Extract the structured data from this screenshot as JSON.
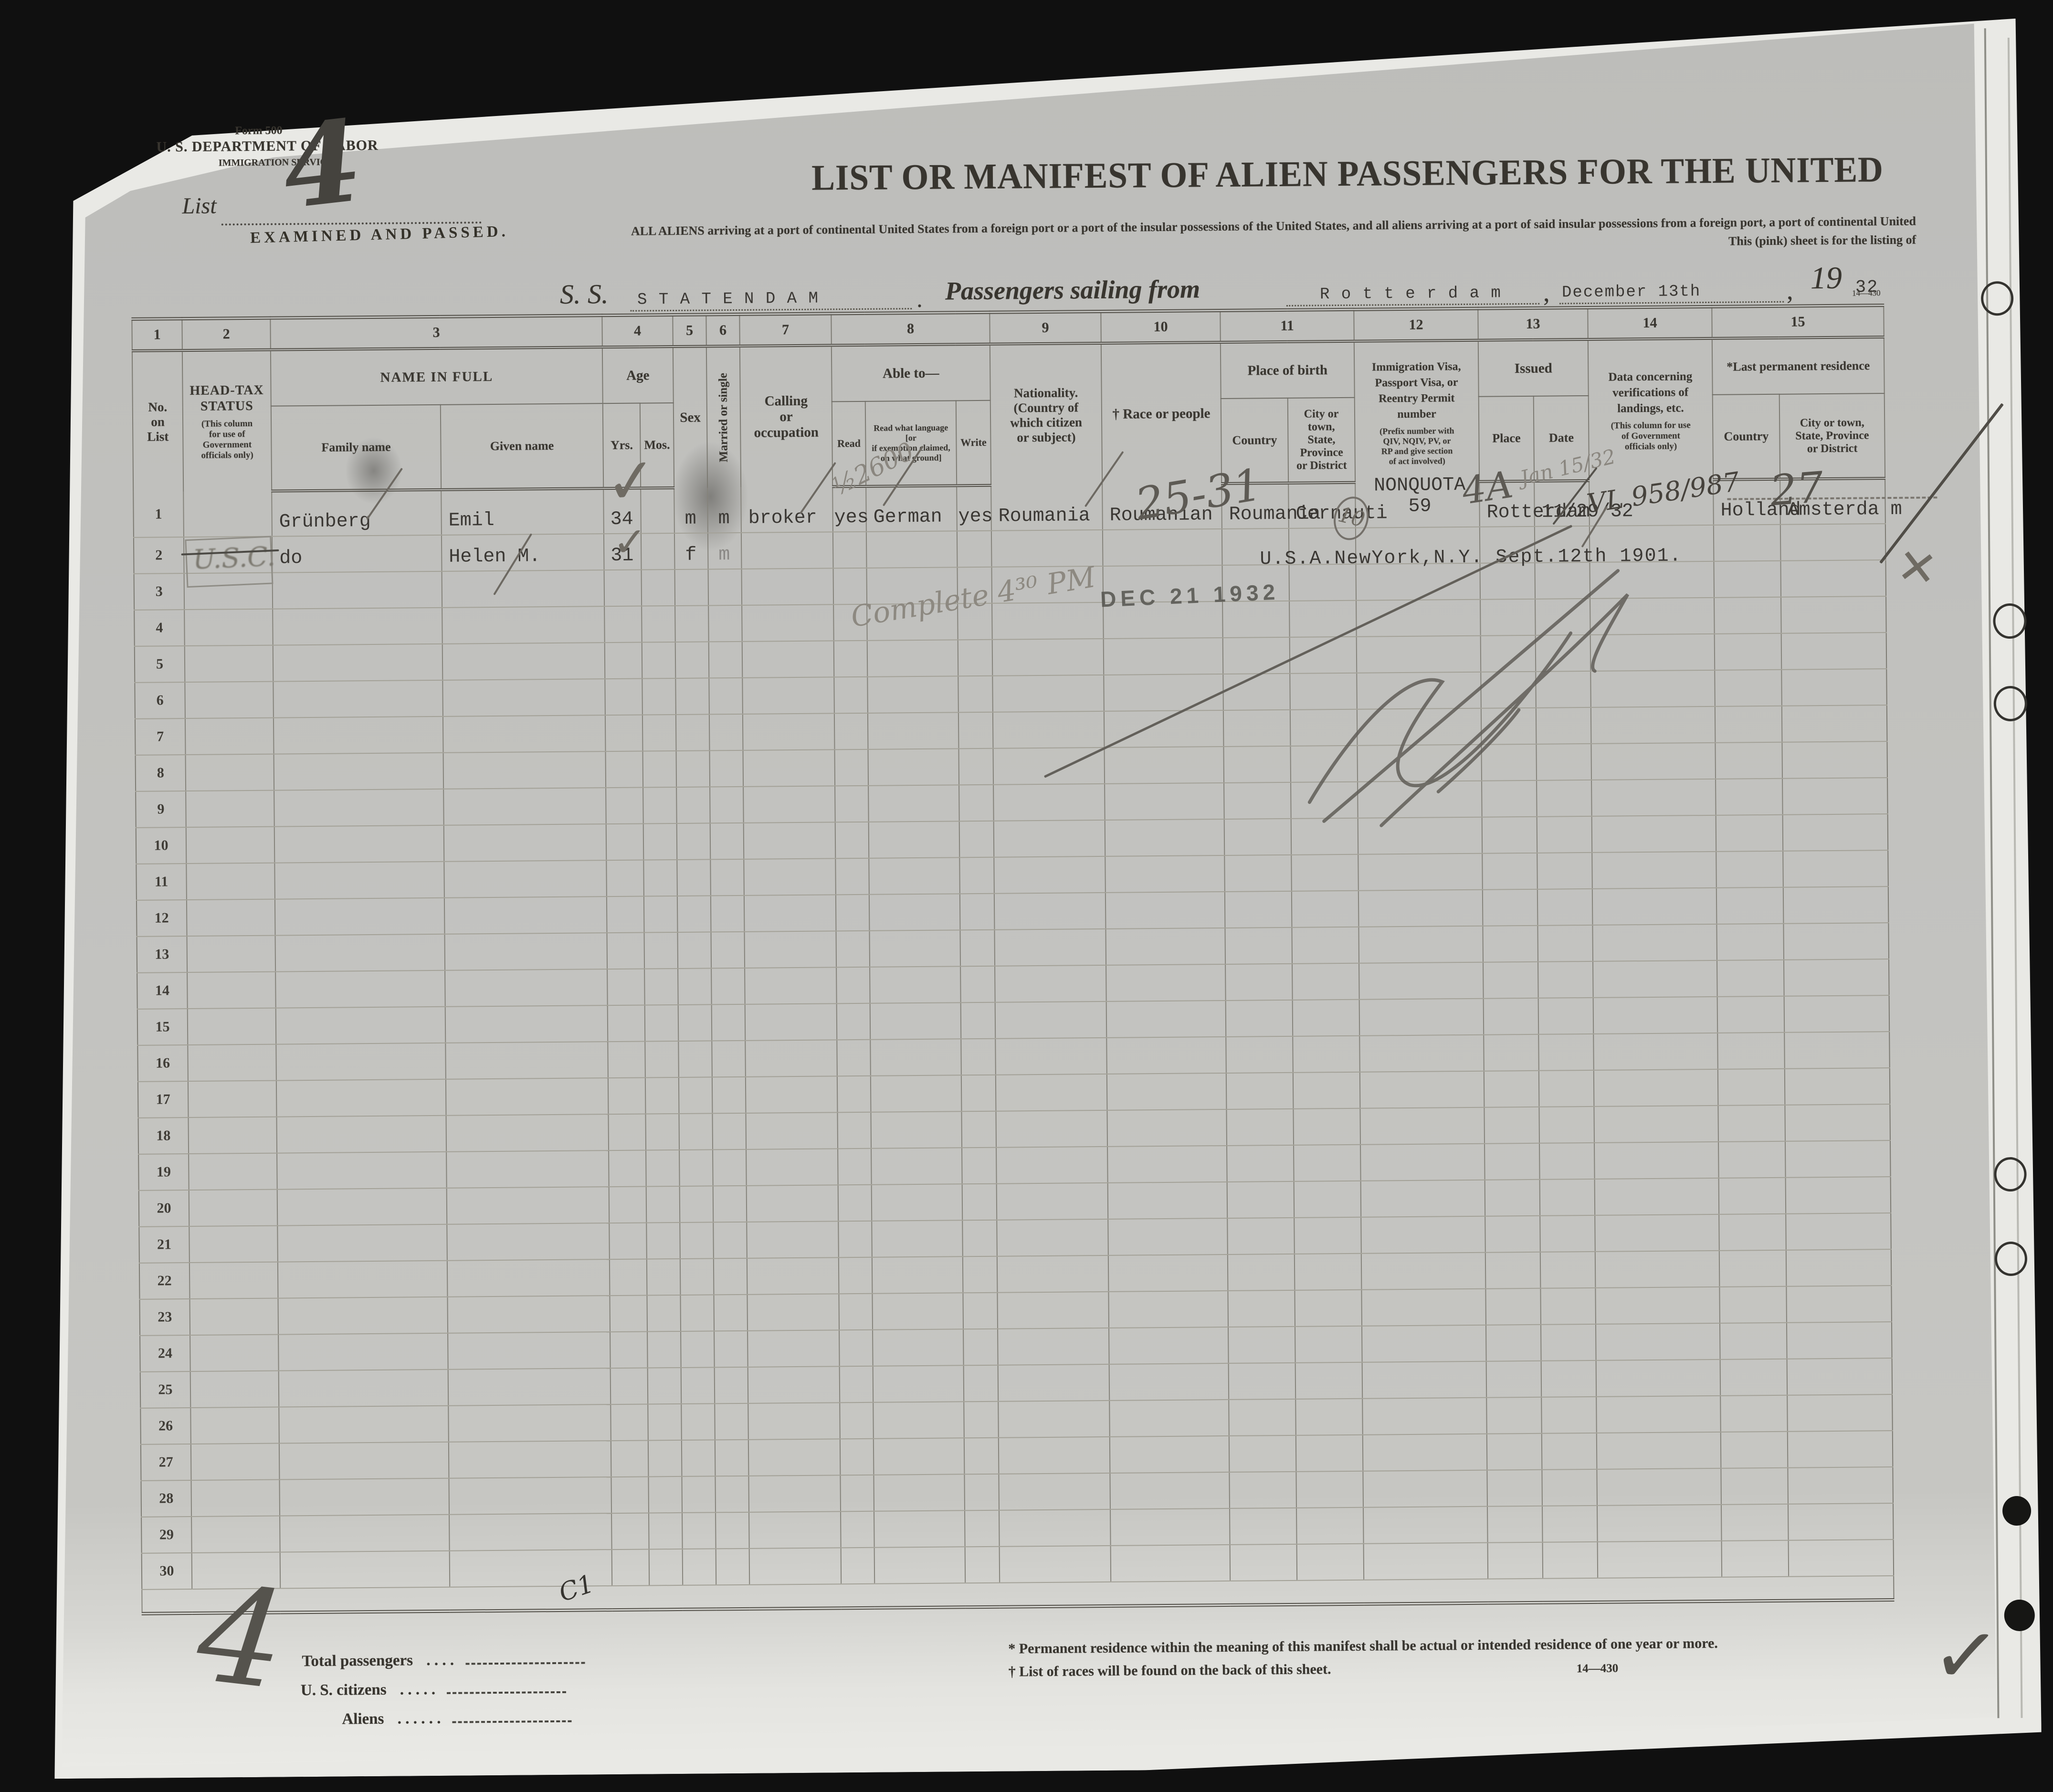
{
  "meta": {
    "form_no": "Form 500",
    "department": "U. S. DEPARTMENT OF LABOR",
    "service": "IMMIGRATION SERVICE",
    "list_label": "List",
    "form_code": "14—430"
  },
  "title": {
    "main": "LIST OR MANIFEST OF ALIEN PASSENGERS FOR THE UNITED",
    "sub1": "ALL ALIENS arriving at a port of continental United States from a foreign port or a port of the insular possessions of the United States, and all aliens arriving at a port of said insular possessions from a foreign port, a port of continental United",
    "sub2": "This (pink) sheet is for the listing of"
  },
  "voyage": {
    "ss_label": "S. S.",
    "ship_name": "S T A T E N D A M",
    "sailing_label": "Passengers sailing from",
    "port": "R o t t e r d a m",
    "sail_date": "December 13th",
    "year_print": "19",
    "year_typed": "32"
  },
  "table": {
    "column_numbers": [
      "1",
      "2",
      "3",
      "4",
      "5",
      "6",
      "7",
      "8",
      "9",
      "10",
      "11",
      "12",
      "13",
      "14",
      "15"
    ],
    "headers": {
      "no": "No.\non\nList",
      "headtax": "HEAD-TAX\nSTATUS",
      "headtax_note": "(This column\nfor use of\nGovernment\nofficials only)",
      "name": "NAME IN FULL",
      "family": "Family name",
      "given": "Given name",
      "age": "Age",
      "yrs": "Yrs.",
      "mos": "Mos.",
      "sex": "Sex",
      "married": "Married or single",
      "calling": "Calling\nor\noccupation",
      "able": "Able to—",
      "read": "Read",
      "readlang": "Read what language [or\nif exemption claimed,\non what ground]",
      "write": "Write",
      "nationality": "Nationality.\n(Country of\nwhich citizen\nor subject)",
      "race": "† Race or people",
      "birth": "Place of birth",
      "birth_country": "Country",
      "birth_city": "City or town,\nState, Province\nor District",
      "visa": "Immigration Visa,\nPassport Visa, or\nReentry Permit\nnumber",
      "visa_note": "(Prefix number with\nQIV, NQIV, PV, or\nRP and give section\nof act involved)",
      "issued": "Issued",
      "place": "Place",
      "date": "Date",
      "verif": "Data concerning\nverifications of\nlandings, etc.",
      "verif_note": "(This column for use\nof Government\nofficials only)",
      "lastres": "*Last permanent residence",
      "res_country": "Country",
      "res_city": "City or town,\nState, Province\nor District"
    },
    "row_fields": [
      "headtax",
      "family",
      "given",
      "yrs",
      "mos",
      "sex",
      "married",
      "calling",
      "read",
      "readlang",
      "write",
      "nationality",
      "race",
      "birth_country",
      "birth_city",
      "visa",
      "issued_place",
      "issued_date",
      "verification",
      "res_country",
      "res_city"
    ],
    "rows": [
      {
        "no": "1",
        "headtax": "",
        "family": "Grünberg",
        "given": "Emil",
        "yrs": "34",
        "mos": "",
        "sex": "m",
        "married": "m",
        "calling": "broker",
        "read": "yes",
        "readlang": "German",
        "write": "yes",
        "nationality": "Roumania",
        "race": "Roumanian",
        "birth_country": "Roumania",
        "birth_city": "Cernauti",
        "visa": "NONQUOTA\n59",
        "issued_place": "Rotterdam",
        "issued_date": "11/29/32",
        "verification": "",
        "res_country": "Holland",
        "res_city": "Amsterda m"
      },
      {
        "no": "2",
        "headtax": "",
        "family": "do",
        "given": "Helen M.",
        "yrs": "31",
        "mos": "",
        "sex": "f",
        "married": "m",
        "calling": "",
        "read": "",
        "readlang": "",
        "write": "",
        "nationality": "",
        "race": "",
        "birth_country": "",
        "birth_city": "",
        "visa": "",
        "issued_place": "",
        "issued_date": "",
        "verification": "",
        "res_country": "",
        "res_city": ""
      },
      {
        "no": "3"
      },
      {
        "no": "4"
      },
      {
        "no": "5"
      },
      {
        "no": "6"
      },
      {
        "no": "7"
      },
      {
        "no": "8"
      },
      {
        "no": "9"
      },
      {
        "no": "10"
      },
      {
        "no": "11"
      },
      {
        "no": "12"
      },
      {
        "no": "13"
      },
      {
        "no": "14"
      },
      {
        "no": "15"
      },
      {
        "no": "16"
      },
      {
        "no": "17"
      },
      {
        "no": "18"
      },
      {
        "no": "19"
      },
      {
        "no": "20"
      },
      {
        "no": "21"
      },
      {
        "no": "22"
      },
      {
        "no": "23"
      },
      {
        "no": "24"
      },
      {
        "no": "25"
      },
      {
        "no": "26"
      },
      {
        "no": "27"
      },
      {
        "no": "28"
      },
      {
        "no": "29"
      },
      {
        "no": "30"
      }
    ]
  },
  "stamps": {
    "examined": "EXAMINED AND PASSED.",
    "date_received": "DEC 21 1932",
    "usc": "U.S.C."
  },
  "annotations": {
    "list_number": "4",
    "fraction": "½2600",
    "range_25_31": "25-31",
    "circled_10": "10",
    "visa_4a": "4A",
    "date_jan": "Jan 15/32",
    "vl_number": "VL 958/987",
    "num_27": "27",
    "complete_time": "Complete 4³⁰ PM",
    "birth_note_row2": "U.S.A.NewYork,N.Y. Sept.12th 1901.",
    "big_4_bottom": "4",
    "c1_mark": "C1",
    "x_mark": "✕",
    "check": "✓"
  },
  "totals": {
    "total_label": "Total passengers",
    "total_dots": ".    .    .    .",
    "us_label": "U. S. citizens",
    "us_dots": ".    .    .    .    .",
    "aliens_label": "Aliens",
    "aliens_dots": ".    .    .    .    .    ."
  },
  "footnotes": {
    "f1": "* Permanent residence within the meaning of this manifest shall be actual or intended residence of one year or more.",
    "f2": "† List of races will be found on the back of this sheet.",
    "code": "14—430"
  },
  "colors": {
    "paper": "#c3c3c0",
    "ink": "#38352f",
    "pencil": "#6f6b63",
    "background": "#101010"
  }
}
